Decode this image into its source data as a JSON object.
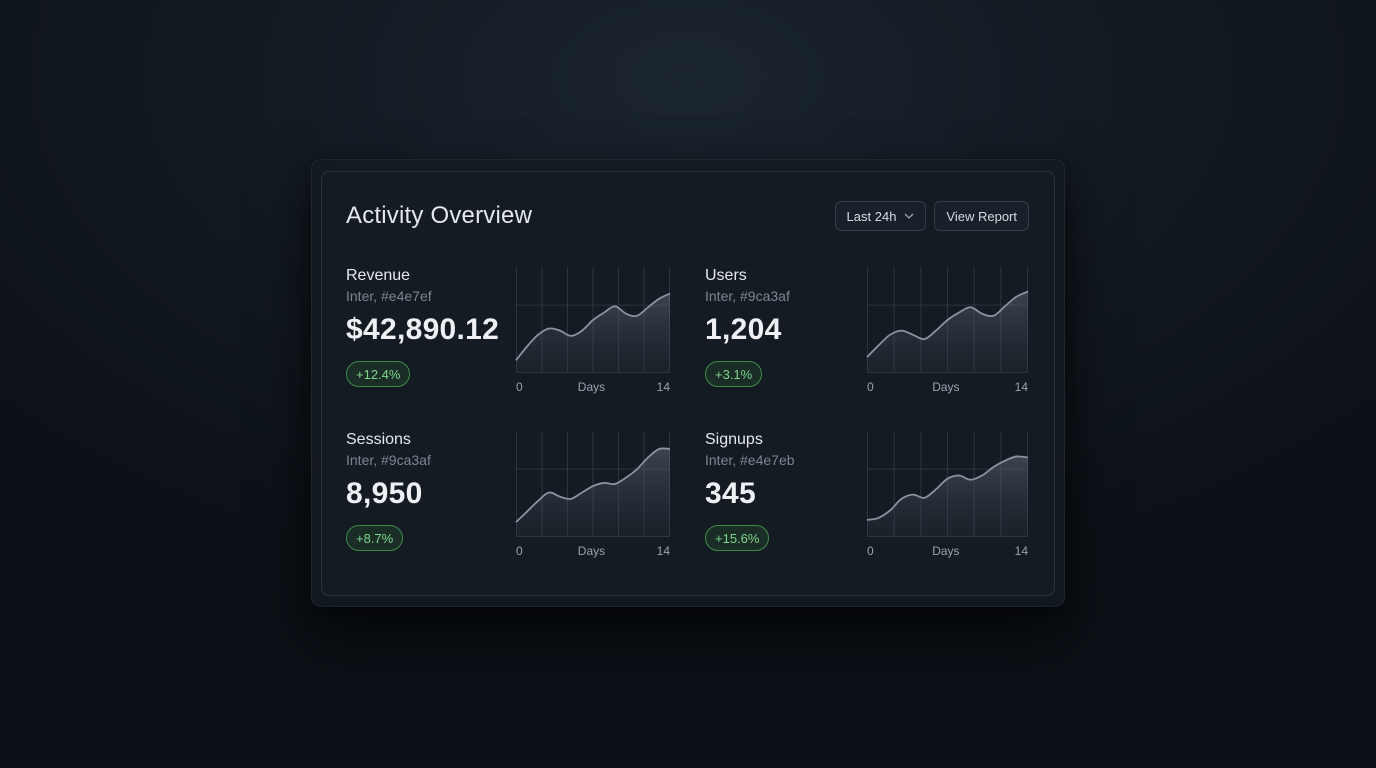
{
  "panel": {
    "title": "Activity Overview",
    "range_label": "Last 24h",
    "view_report_label": "View Report"
  },
  "colors": {
    "accent_positive": "#7ed58a",
    "line": "#8a93a2",
    "grid": "#2c3440"
  },
  "metrics": [
    {
      "label": "Revenue",
      "sub": "Inter, #e4e7ef",
      "value": "$42,890.12",
      "change": "+12.4%"
    },
    {
      "label": "Users",
      "sub": "Inter, #9ca3af",
      "value": "1,204",
      "change": "+3.1%"
    },
    {
      "label": "Sessions",
      "sub": "Inter, #9ca3af",
      "value": "8,950",
      "change": "+8.7%"
    },
    {
      "label": "Signups",
      "sub": "Inter, #e4e7eb",
      "value": "345",
      "change": "+15.6%"
    }
  ],
  "chart_data": [
    {
      "type": "area",
      "xlabel": "Days",
      "xlim": [
        0,
        14
      ],
      "x_ticks": [
        "0",
        "14"
      ],
      "grid": true,
      "x": [
        0,
        1,
        2,
        3,
        4,
        5,
        6,
        7,
        8,
        9,
        10,
        11,
        12,
        13,
        14
      ],
      "values": [
        0.12,
        0.25,
        0.36,
        0.42,
        0.4,
        0.35,
        0.4,
        0.5,
        0.57,
        0.63,
        0.56,
        0.54,
        0.62,
        0.7,
        0.75
      ]
    },
    {
      "type": "area",
      "xlabel": "Days",
      "xlim": [
        0,
        14
      ],
      "x_ticks": [
        "0",
        "14"
      ],
      "grid": true,
      "x": [
        0,
        1,
        2,
        3,
        4,
        5,
        6,
        7,
        8,
        9,
        10,
        11,
        12,
        13,
        14
      ],
      "values": [
        0.15,
        0.26,
        0.36,
        0.4,
        0.36,
        0.32,
        0.4,
        0.5,
        0.57,
        0.62,
        0.56,
        0.54,
        0.63,
        0.72,
        0.77
      ]
    },
    {
      "type": "area",
      "xlabel": "Days",
      "xlim": [
        0,
        14
      ],
      "x_ticks": [
        "0",
        "14"
      ],
      "grid": true,
      "x": [
        0,
        1,
        2,
        3,
        4,
        5,
        6,
        7,
        8,
        9,
        10,
        11,
        12,
        13,
        14
      ],
      "values": [
        0.14,
        0.24,
        0.34,
        0.42,
        0.38,
        0.36,
        0.42,
        0.48,
        0.51,
        0.5,
        0.56,
        0.64,
        0.75,
        0.83,
        0.83
      ]
    },
    {
      "type": "area",
      "xlabel": "Days",
      "xlim": [
        0,
        14
      ],
      "x_ticks": [
        "0",
        "14"
      ],
      "grid": true,
      "x": [
        0,
        1,
        2,
        3,
        4,
        5,
        6,
        7,
        8,
        9,
        10,
        11,
        12,
        13,
        14
      ],
      "values": [
        0.16,
        0.18,
        0.25,
        0.36,
        0.4,
        0.37,
        0.45,
        0.55,
        0.58,
        0.54,
        0.58,
        0.66,
        0.72,
        0.76,
        0.75
      ]
    }
  ]
}
